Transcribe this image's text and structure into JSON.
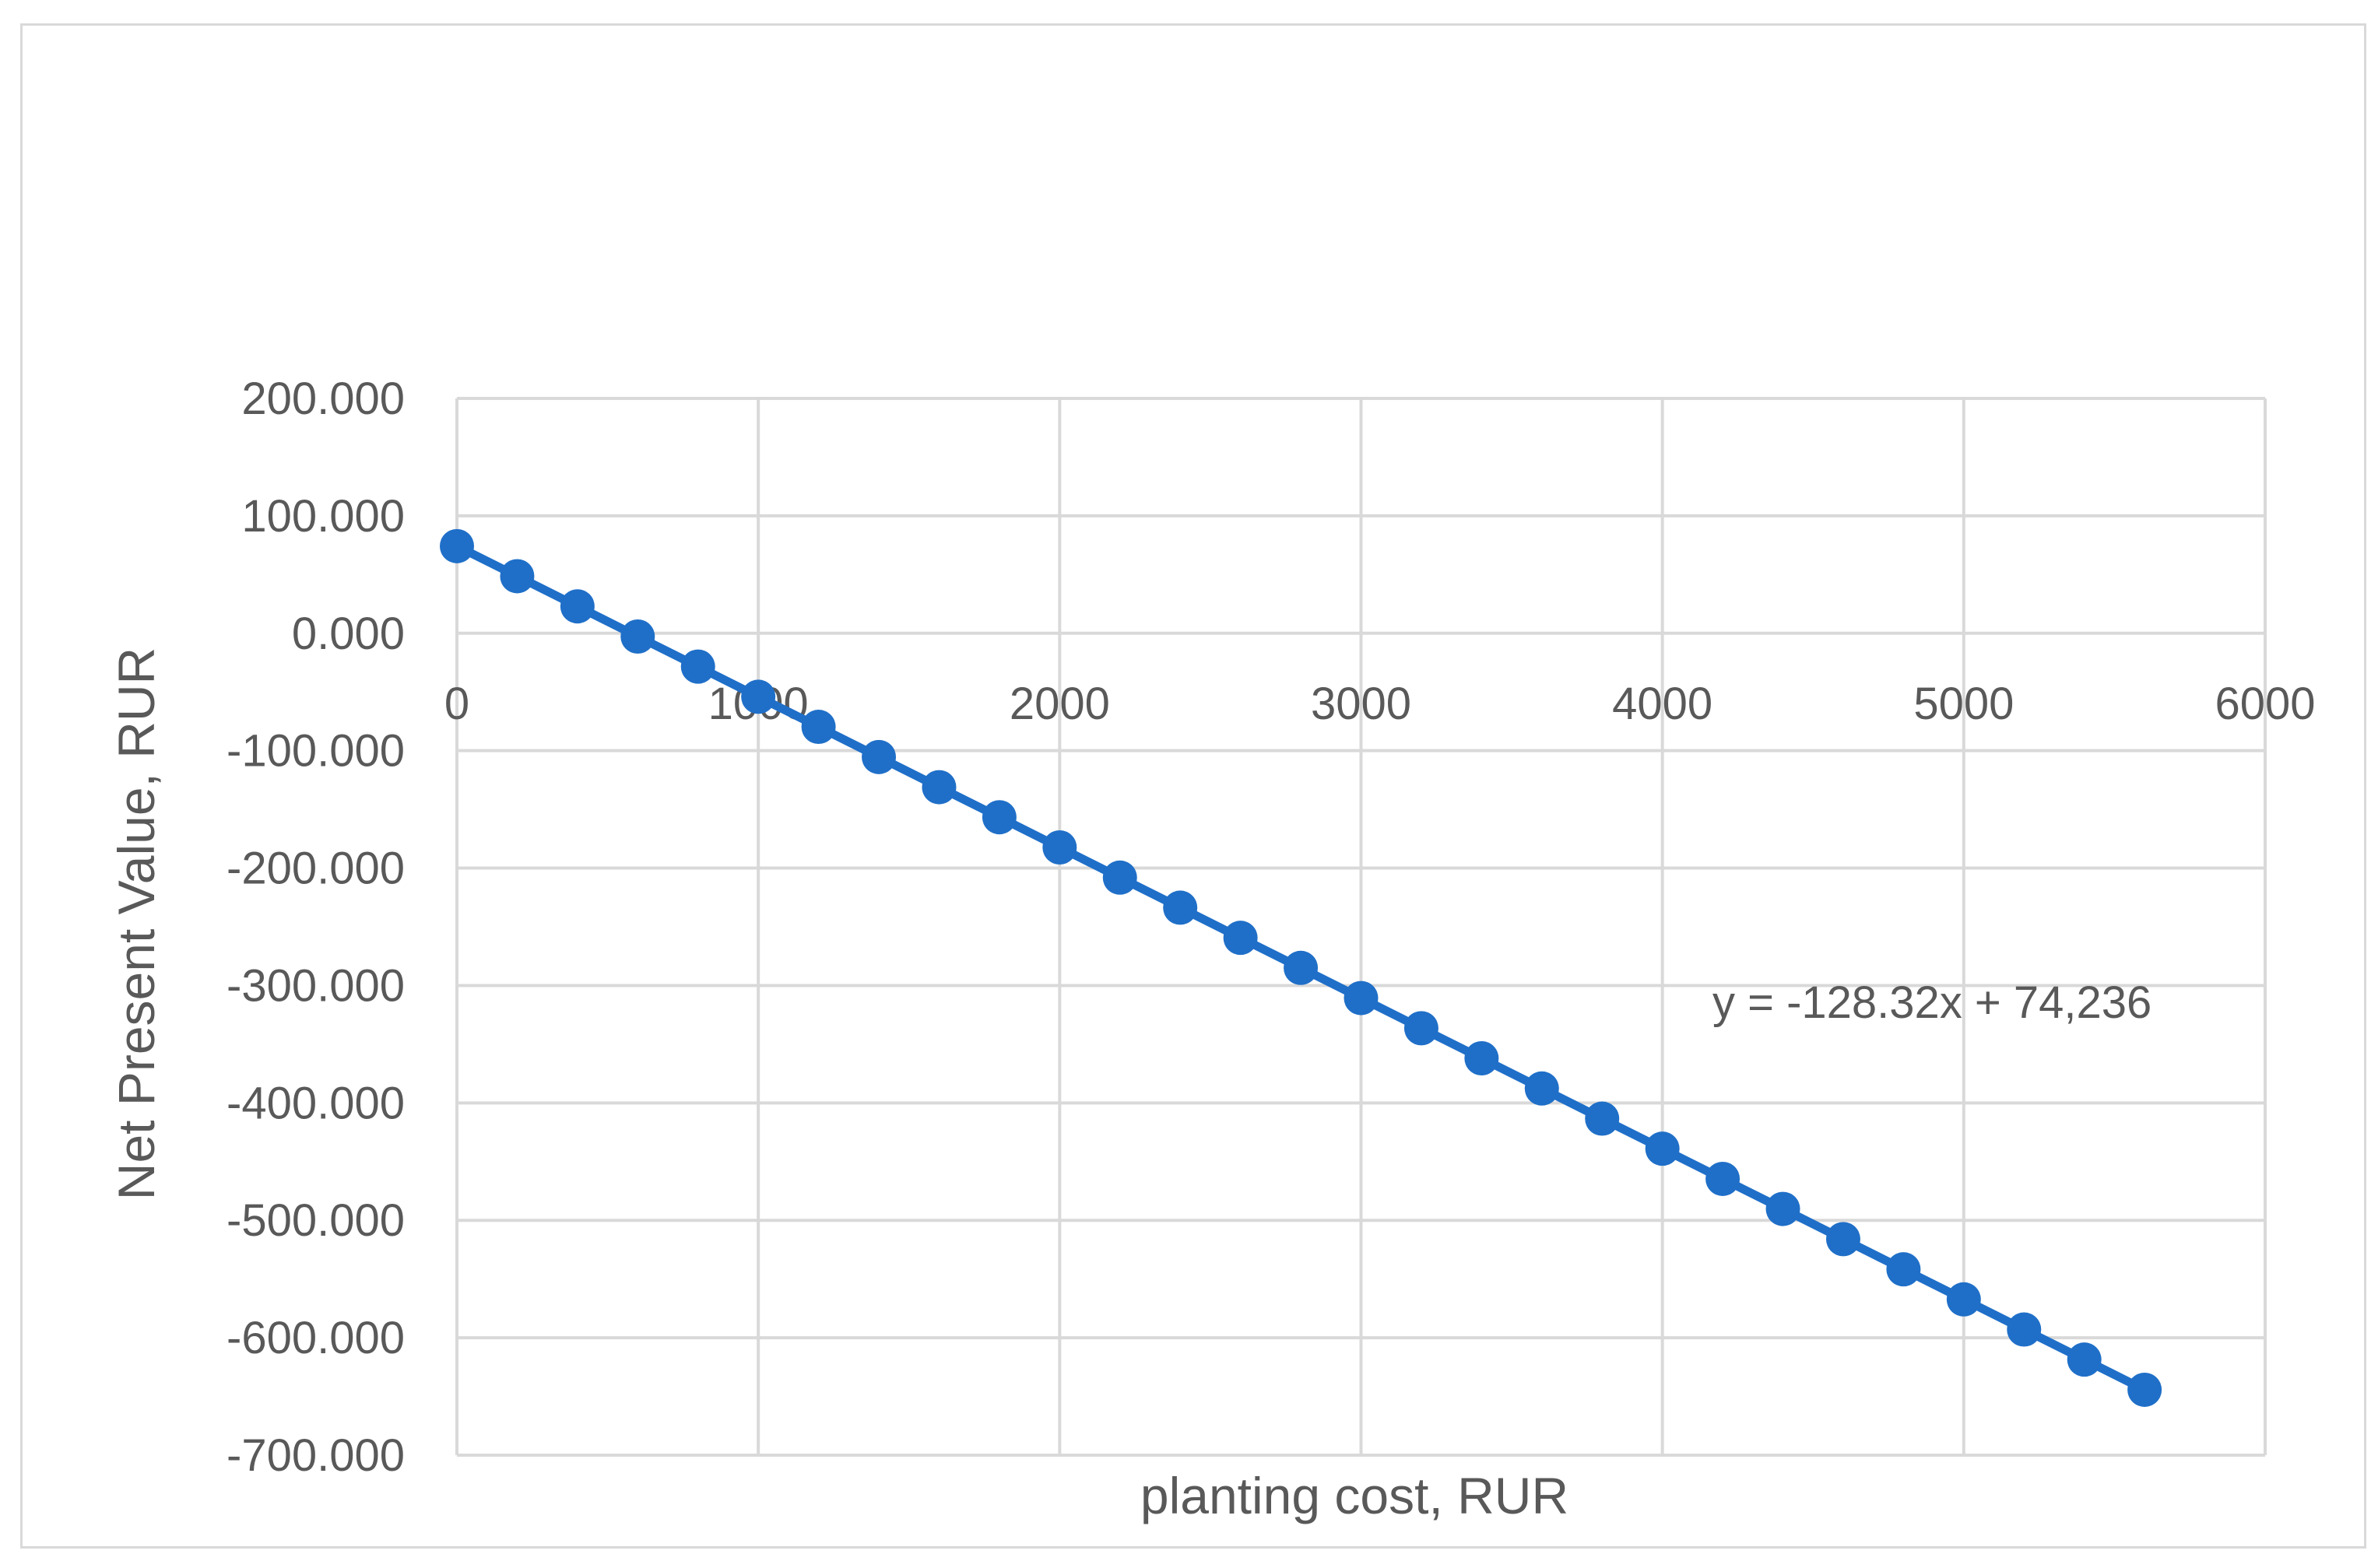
{
  "chart_data": {
    "type": "line",
    "title": "",
    "xlabel": "planting cost, RUR",
    "ylabel": "Net Present Value, RUR",
    "xlim": [
      0,
      6000
    ],
    "ylim": [
      -700,
      200
    ],
    "x_ticks": [
      0,
      1000,
      2000,
      3000,
      4000,
      5000,
      6000
    ],
    "x_tick_labels": [
      "0",
      "1000",
      "2000",
      "3000",
      "4000",
      "5000",
      "6000"
    ],
    "y_ticks": [
      200,
      100,
      0,
      -100,
      -200,
      -300,
      -400,
      -500,
      -600,
      -700
    ],
    "y_tick_labels": [
      "200.000",
      "100.000",
      "0.000",
      "-100.000",
      "-200.000",
      "-300.000",
      "-400.000",
      "-500.000",
      "-600.000",
      "-700.000"
    ],
    "grid": true,
    "legend": "none",
    "trendline_label": "y = -128.32x + 74,236",
    "series": [
      {
        "color": "#1f6fc8",
        "marker": "circle",
        "x": [
          0,
          200,
          400,
          600,
          800,
          1000,
          1200,
          1400,
          1600,
          1800,
          2000,
          2200,
          2400,
          2600,
          2800,
          3000,
          3200,
          3400,
          3600,
          3800,
          4000,
          4200,
          4400,
          4600,
          4800,
          5000,
          5200,
          5400,
          5600
        ],
        "y": [
          74.2,
          48.6,
          22.9,
          -2.8,
          -28.4,
          -54.1,
          -79.7,
          -105.4,
          -131.1,
          -156.7,
          -182.4,
          -208.1,
          -233.7,
          -259.4,
          -285.0,
          -310.7,
          -336.4,
          -362.0,
          -387.7,
          -413.4,
          -439.0,
          -464.7,
          -490.3,
          -516.0,
          -541.7,
          -567.3,
          -593.0,
          -618.6,
          -644.3
        ]
      }
    ]
  },
  "colors": {
    "grid": "#d9d9d9",
    "text": "#595959",
    "series": "#1f6fc8",
    "frame": "#d9d9d9"
  }
}
